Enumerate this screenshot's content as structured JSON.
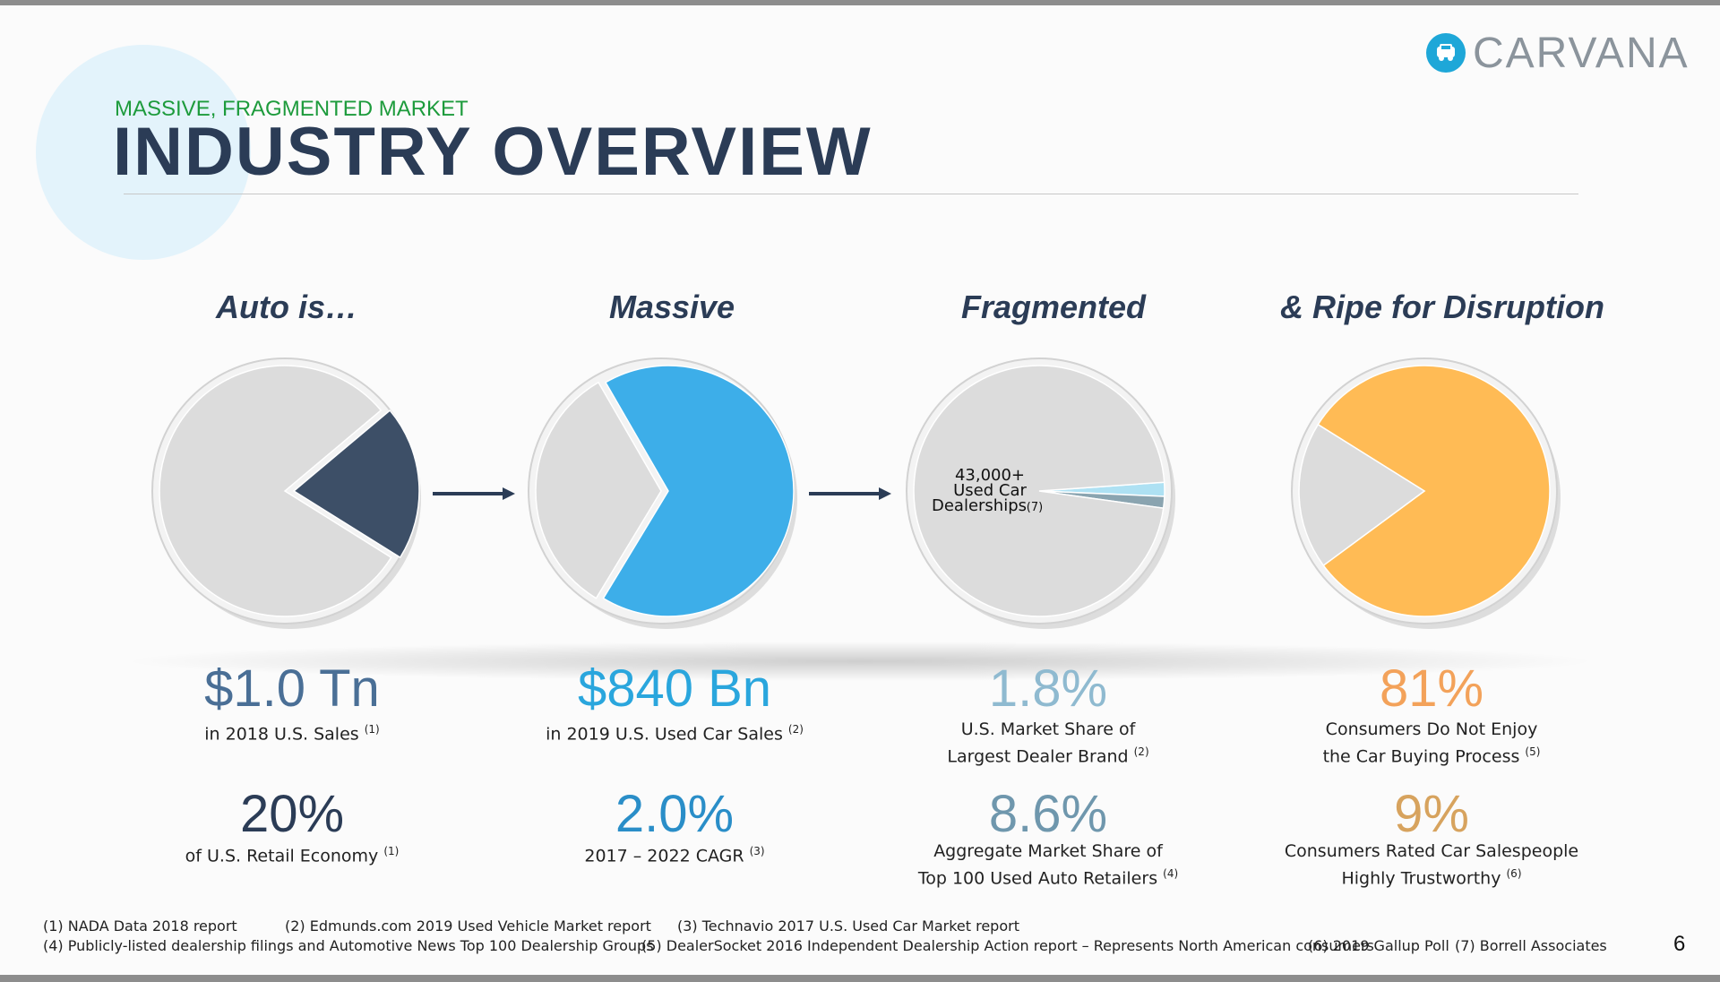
{
  "header": {
    "logo_text": "CARVANA",
    "subtitle": "MASSIVE, FRAGMENTED MARKET",
    "title": "INDUSTRY OVERVIEW"
  },
  "columns": [
    {
      "heading": "Auto is…",
      "stat1": {
        "value": "$1.0 Tn",
        "caption": "in 2018 U.S. Sales",
        "ref": "(1)"
      },
      "stat2": {
        "value": "20%",
        "caption": "of U.S. Retail Economy",
        "ref": "(1)"
      }
    },
    {
      "heading": "Massive",
      "stat1": {
        "value": "$840 Bn",
        "caption": "in 2019 U.S. Used Car Sales",
        "ref": "(2)"
      },
      "stat2": {
        "value": "2.0%",
        "caption": "2017 – 2022 CAGR",
        "ref": "(3)"
      }
    },
    {
      "heading": "Fragmented",
      "stat1": {
        "value": "1.8%",
        "caption_line1": "U.S. Market Share of",
        "caption_line2": "Largest Dealer Brand",
        "ref": "(2)"
      },
      "stat2": {
        "value": "8.6%",
        "caption_line1": "Aggregate Market Share of",
        "caption_line2": "Top 100 Used Auto Retailers",
        "ref": "(4)"
      }
    },
    {
      "heading": "& Ripe for Disruption",
      "stat1": {
        "value": "81%",
        "caption_line1": "Consumers Do Not Enjoy",
        "caption_line2": "the Car Buying Process",
        "ref": "(5)"
      },
      "stat2": {
        "value": "9%",
        "caption_line1": "Consumers Rated Car Salespeople",
        "caption_line2": "Highly Trustworthy",
        "ref": "(6)"
      }
    }
  ],
  "chart_data": [
    {
      "type": "pie",
      "label": "Auto is…",
      "values": [
        20,
        80
      ],
      "colors": [
        "#3d4f67",
        "#dcdcdc"
      ]
    },
    {
      "type": "pie",
      "label": "Massive",
      "values": [
        67,
        33
      ],
      "colors": [
        "#3daee9",
        "#dcdcdc"
      ]
    },
    {
      "type": "pie",
      "label": "Fragmented",
      "values": [
        1.8,
        1.5,
        96.7
      ],
      "colors": [
        "#aee1f3",
        "#8aa4b0",
        "#dcdcdc"
      ],
      "annotation": {
        "line1": "43,000+",
        "line2": "Used Car",
        "line3": "Dealerships",
        "ref": "(7)"
      }
    },
    {
      "type": "pie",
      "label": "& Ripe for Disruption",
      "values": [
        81,
        19
      ],
      "colors": [
        "#ffbb55",
        "#dcdcdc"
      ]
    }
  ],
  "colors": {
    "col1": "#4a6f96",
    "col1_second": "#2b3c56",
    "col2": "#2aa6dd",
    "col2_second": "#2a8ec8",
    "col3": "#8fbad0",
    "col3_second": "#6f97ad",
    "col4": "#f3a25a",
    "col4_second": "#d7a35e"
  },
  "footnotes": {
    "row1": [
      "(1)  NADA Data 2018 report",
      "(2) Edmunds.com 2019 Used Vehicle Market report",
      "(3) Technavio 2017 U.S. Used Car Market report"
    ],
    "row2": [
      "(4)  Publicly-listed dealership filings and Automotive News Top 100 Dealership Groups",
      "(5) DealerSocket 2016 Independent Dealership Action report – Represents North American consumers",
      "(6) 2019 Gallup Poll",
      "(7) Borrell Associates"
    ]
  },
  "page_number": "6"
}
